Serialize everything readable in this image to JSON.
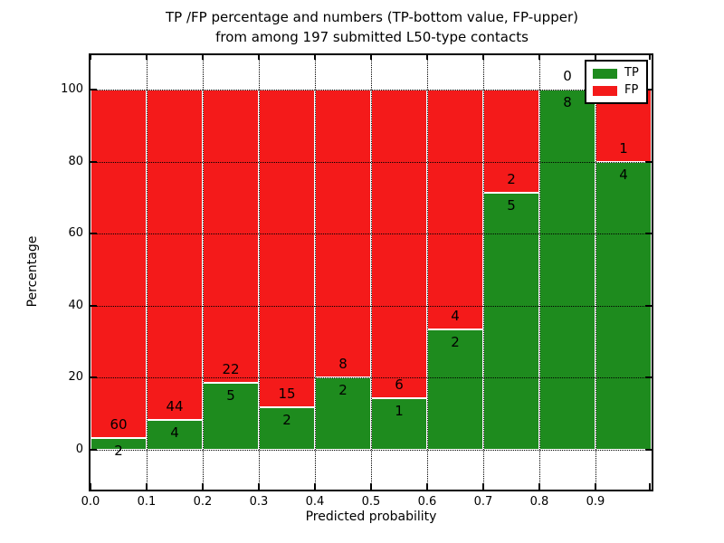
{
  "chart_data": {
    "type": "bar",
    "stacked": true,
    "title_line1": "TP /FP percentage and numbers (TP-bottom value, FP-upper)",
    "title_line2": "from among 197 submitted L50-type contacts",
    "xlabel": "Predicted probability",
    "ylabel": "Percentage",
    "total_contacts": 197,
    "bin_width": 0.1,
    "categories": [
      0.0,
      0.1,
      0.2,
      0.3,
      0.4,
      0.5,
      0.6,
      0.7,
      0.8,
      0.9
    ],
    "x_tick_labels": [
      "0.0",
      "0.1",
      "0.2",
      "0.3",
      "0.4",
      "0.5",
      "0.6",
      "0.7",
      "0.8",
      "0.9"
    ],
    "y_ticks": [
      0,
      20,
      40,
      60,
      80,
      100
    ],
    "y_tick_labels": [
      "0",
      "20",
      "40",
      "60",
      "80",
      "100"
    ],
    "xlim": [
      0.0,
      1.0
    ],
    "ylim": [
      -11,
      110
    ],
    "grid": true,
    "series": [
      {
        "name": "TP",
        "color": "#1E8B1E",
        "counts": [
          2,
          4,
          5,
          2,
          2,
          1,
          2,
          5,
          8,
          4
        ]
      },
      {
        "name": "FP",
        "color": "#F41A1A",
        "counts": [
          60,
          44,
          22,
          15,
          8,
          6,
          4,
          2,
          0,
          1
        ]
      }
    ],
    "tp_percentages": [
      3.2,
      8.3,
      18.5,
      11.8,
      20.0,
      14.3,
      33.3,
      71.4,
      100.0,
      80.0
    ],
    "legend": {
      "position": "upper right",
      "entries": [
        {
          "label": "TP",
          "color": "#1E8B1E"
        },
        {
          "label": "FP",
          "color": "#F41A1A"
        }
      ]
    }
  }
}
